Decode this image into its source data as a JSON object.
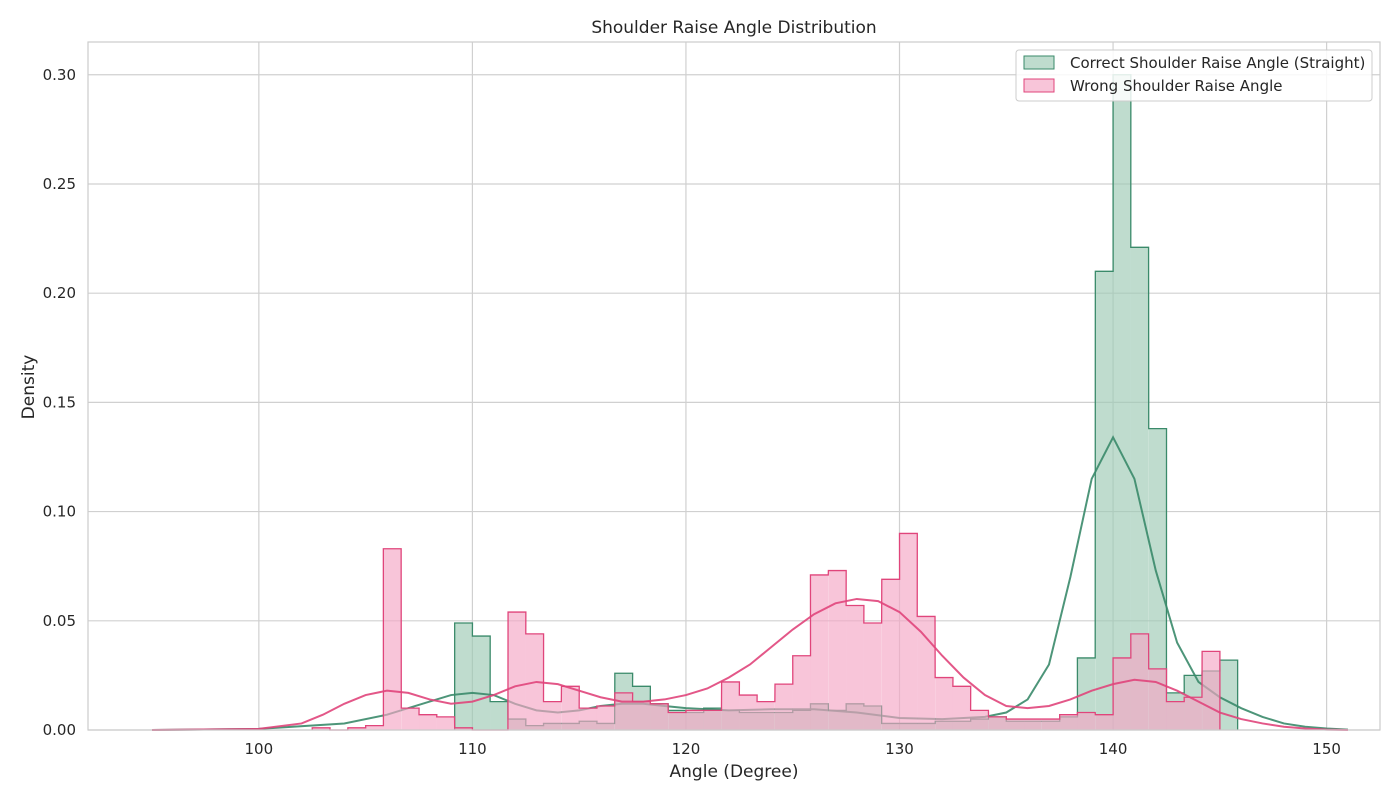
{
  "chart_data": {
    "type": "histogram",
    "title": "Shoulder Raise Angle Distribution",
    "xlabel": "Angle (Degree)",
    "ylabel": "Density",
    "xlim": [
      92,
      152.5
    ],
    "ylim": [
      0,
      0.315
    ],
    "x_ticks": [
      100,
      110,
      120,
      130,
      140,
      150
    ],
    "y_ticks": [
      0.0,
      0.05,
      0.1,
      0.15,
      0.2,
      0.25,
      0.3
    ],
    "x_tick_labels": [
      "100",
      "110",
      "120",
      "130",
      "140",
      "150"
    ],
    "y_tick_labels": [
      "0.00",
      "0.05",
      "0.10",
      "0.15",
      "0.20",
      "0.25",
      "0.30"
    ],
    "grid": true,
    "legend_position": "top-right",
    "bin_width": 0.8333,
    "series": [
      {
        "name": "Correct Shoulder Raise Angle (Straight)",
        "color": "#3a8a6a",
        "fill": "#9cc9b4",
        "bins": [
          [
            109.17,
            0.049
          ],
          [
            110.0,
            0.043
          ],
          [
            110.83,
            0.013
          ],
          [
            111.67,
            0.005
          ],
          [
            112.5,
            0.002
          ],
          [
            113.33,
            0.003
          ],
          [
            114.17,
            0.003
          ],
          [
            115.0,
            0.004
          ],
          [
            115.83,
            0.003
          ],
          [
            116.67,
            0.026
          ],
          [
            117.5,
            0.02
          ],
          [
            118.33,
            0.012
          ],
          [
            119.17,
            0.009
          ],
          [
            120.0,
            0.008
          ],
          [
            120.83,
            0.01
          ],
          [
            121.67,
            0.009
          ],
          [
            122.5,
            0.008
          ],
          [
            123.33,
            0.008
          ],
          [
            124.17,
            0.008
          ],
          [
            125.0,
            0.009
          ],
          [
            125.83,
            0.012
          ],
          [
            126.67,
            0.009
          ],
          [
            127.5,
            0.012
          ],
          [
            128.33,
            0.011
          ],
          [
            129.17,
            0.003
          ],
          [
            130.0,
            0.003
          ],
          [
            130.83,
            0.003
          ],
          [
            131.67,
            0.004
          ],
          [
            132.5,
            0.004
          ],
          [
            133.33,
            0.005
          ],
          [
            134.17,
            0.006
          ],
          [
            135.0,
            0.004
          ],
          [
            135.83,
            0.004
          ],
          [
            136.67,
            0.004
          ],
          [
            137.5,
            0.006
          ],
          [
            138.33,
            0.033
          ],
          [
            139.17,
            0.21
          ],
          [
            140.0,
            0.3
          ],
          [
            140.83,
            0.221
          ],
          [
            141.67,
            0.138
          ],
          [
            142.5,
            0.017
          ],
          [
            143.33,
            0.025
          ],
          [
            144.17,
            0.027
          ],
          [
            145.0,
            0.032
          ]
        ],
        "kde": [
          [
            95,
            0.0
          ],
          [
            100,
            0.0005
          ],
          [
            104,
            0.003
          ],
          [
            106,
            0.007
          ],
          [
            108,
            0.013
          ],
          [
            109,
            0.016
          ],
          [
            110,
            0.017
          ],
          [
            111,
            0.016
          ],
          [
            112,
            0.012
          ],
          [
            113,
            0.009
          ],
          [
            114,
            0.008
          ],
          [
            115,
            0.009
          ],
          [
            116,
            0.011
          ],
          [
            117,
            0.012
          ],
          [
            118,
            0.012
          ],
          [
            119,
            0.011
          ],
          [
            120,
            0.01
          ],
          [
            122,
            0.009
          ],
          [
            124,
            0.0095
          ],
          [
            126,
            0.0095
          ],
          [
            128,
            0.008
          ],
          [
            130,
            0.0055
          ],
          [
            132,
            0.005
          ],
          [
            134,
            0.006
          ],
          [
            135,
            0.008
          ],
          [
            136,
            0.014
          ],
          [
            137,
            0.03
          ],
          [
            138,
            0.07
          ],
          [
            139,
            0.115
          ],
          [
            140,
            0.134
          ],
          [
            141,
            0.115
          ],
          [
            142,
            0.073
          ],
          [
            143,
            0.04
          ],
          [
            144,
            0.022
          ],
          [
            145,
            0.015
          ],
          [
            146,
            0.01
          ],
          [
            147,
            0.006
          ],
          [
            148,
            0.003
          ],
          [
            149,
            0.0015
          ],
          [
            150,
            0.0007
          ],
          [
            151,
            0.0002
          ]
        ]
      },
      {
        "name": "Wrong Shoulder Raise Angle",
        "color": "#e0457b",
        "fill": "#f4a6c4",
        "bins": [
          [
            102.5,
            0.001
          ],
          [
            103.33,
            0.0
          ],
          [
            104.17,
            0.001
          ],
          [
            105.0,
            0.002
          ],
          [
            105.83,
            0.083
          ],
          [
            106.67,
            0.01
          ],
          [
            107.5,
            0.007
          ],
          [
            108.33,
            0.006
          ],
          [
            109.17,
            0.001
          ],
          [
            110.0,
            0.0
          ],
          [
            110.83,
            0.0
          ],
          [
            111.67,
            0.054
          ],
          [
            112.5,
            0.044
          ],
          [
            113.33,
            0.013
          ],
          [
            114.17,
            0.02
          ],
          [
            115.0,
            0.01
          ],
          [
            115.83,
            0.011
          ],
          [
            116.67,
            0.017
          ],
          [
            117.5,
            0.013
          ],
          [
            118.33,
            0.012
          ],
          [
            119.17,
            0.008
          ],
          [
            120.0,
            0.009
          ],
          [
            120.83,
            0.009
          ],
          [
            121.67,
            0.022
          ],
          [
            122.5,
            0.016
          ],
          [
            123.33,
            0.013
          ],
          [
            124.17,
            0.021
          ],
          [
            125.0,
            0.034
          ],
          [
            125.83,
            0.071
          ],
          [
            126.67,
            0.073
          ],
          [
            127.5,
            0.057
          ],
          [
            128.33,
            0.049
          ],
          [
            129.17,
            0.069
          ],
          [
            130.0,
            0.09
          ],
          [
            130.83,
            0.052
          ],
          [
            131.67,
            0.024
          ],
          [
            132.5,
            0.02
          ],
          [
            133.33,
            0.009
          ],
          [
            134.17,
            0.006
          ],
          [
            135.0,
            0.005
          ],
          [
            135.83,
            0.005
          ],
          [
            136.67,
            0.005
          ],
          [
            137.5,
            0.007
          ],
          [
            138.33,
            0.008
          ],
          [
            139.17,
            0.007
          ],
          [
            140.0,
            0.033
          ],
          [
            140.83,
            0.044
          ],
          [
            141.67,
            0.028
          ],
          [
            142.5,
            0.013
          ],
          [
            143.33,
            0.015
          ],
          [
            144.17,
            0.036
          ]
        ],
        "kde": [
          [
            95,
            0.0
          ],
          [
            100,
            0.0005
          ],
          [
            102,
            0.003
          ],
          [
            103,
            0.007
          ],
          [
            104,
            0.012
          ],
          [
            105,
            0.016
          ],
          [
            106,
            0.018
          ],
          [
            107,
            0.017
          ],
          [
            108,
            0.014
          ],
          [
            109,
            0.012
          ],
          [
            110,
            0.013
          ],
          [
            111,
            0.016
          ],
          [
            112,
            0.02
          ],
          [
            113,
            0.022
          ],
          [
            114,
            0.021
          ],
          [
            115,
            0.018
          ],
          [
            116,
            0.015
          ],
          [
            117,
            0.013
          ],
          [
            118,
            0.013
          ],
          [
            119,
            0.014
          ],
          [
            120,
            0.016
          ],
          [
            121,
            0.019
          ],
          [
            122,
            0.024
          ],
          [
            123,
            0.03
          ],
          [
            124,
            0.038
          ],
          [
            125,
            0.046
          ],
          [
            126,
            0.053
          ],
          [
            127,
            0.058
          ],
          [
            128,
            0.06
          ],
          [
            129,
            0.059
          ],
          [
            130,
            0.054
          ],
          [
            131,
            0.045
          ],
          [
            132,
            0.034
          ],
          [
            133,
            0.024
          ],
          [
            134,
            0.016
          ],
          [
            135,
            0.011
          ],
          [
            136,
            0.01
          ],
          [
            137,
            0.011
          ],
          [
            138,
            0.014
          ],
          [
            139,
            0.018
          ],
          [
            140,
            0.021
          ],
          [
            141,
            0.023
          ],
          [
            142,
            0.022
          ],
          [
            143,
            0.018
          ],
          [
            144,
            0.013
          ],
          [
            145,
            0.008
          ],
          [
            146,
            0.005
          ],
          [
            147,
            0.003
          ],
          [
            148,
            0.0015
          ],
          [
            149,
            0.0007
          ],
          [
            150,
            0.0002
          ],
          [
            151,
            0.0
          ]
        ]
      }
    ]
  }
}
